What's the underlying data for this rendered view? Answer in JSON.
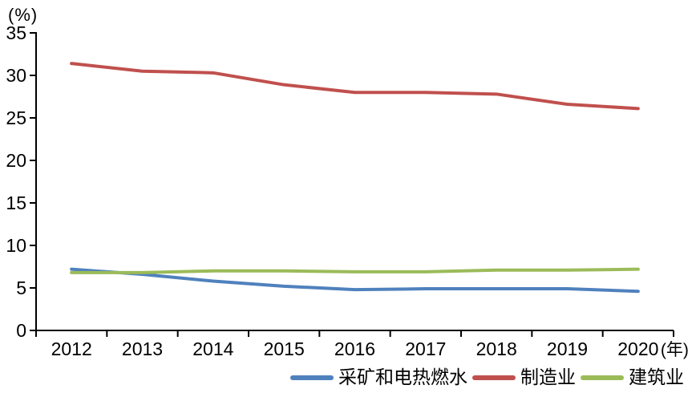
{
  "chart_data": {
    "type": "line",
    "title": "",
    "y_unit_label": "(%)",
    "x_unit_label": "(年)",
    "categories": [
      "2012",
      "2013",
      "2014",
      "2015",
      "2016",
      "2017",
      "2018",
      "2019",
      "2020"
    ],
    "series": [
      {
        "name": "采矿和电热燃水",
        "color": "#4F81BD",
        "values": [
          7.2,
          6.6,
          5.8,
          5.2,
          4.8,
          4.9,
          4.9,
          4.9,
          4.6
        ]
      },
      {
        "name": "制造业",
        "color": "#C0504D",
        "values": [
          31.4,
          30.5,
          30.3,
          28.9,
          28.0,
          28.0,
          27.8,
          26.6,
          26.1
        ]
      },
      {
        "name": "建筑业",
        "color": "#9BBB59",
        "values": [
          6.8,
          6.8,
          7.0,
          7.0,
          6.9,
          6.9,
          7.1,
          7.1,
          7.2
        ]
      }
    ],
    "ylim": [
      0,
      35
    ],
    "y_ticks": [
      0,
      5,
      10,
      15,
      20,
      25,
      30,
      35
    ],
    "grid": false,
    "legend_position": "bottom",
    "axis_color": "#000000"
  }
}
